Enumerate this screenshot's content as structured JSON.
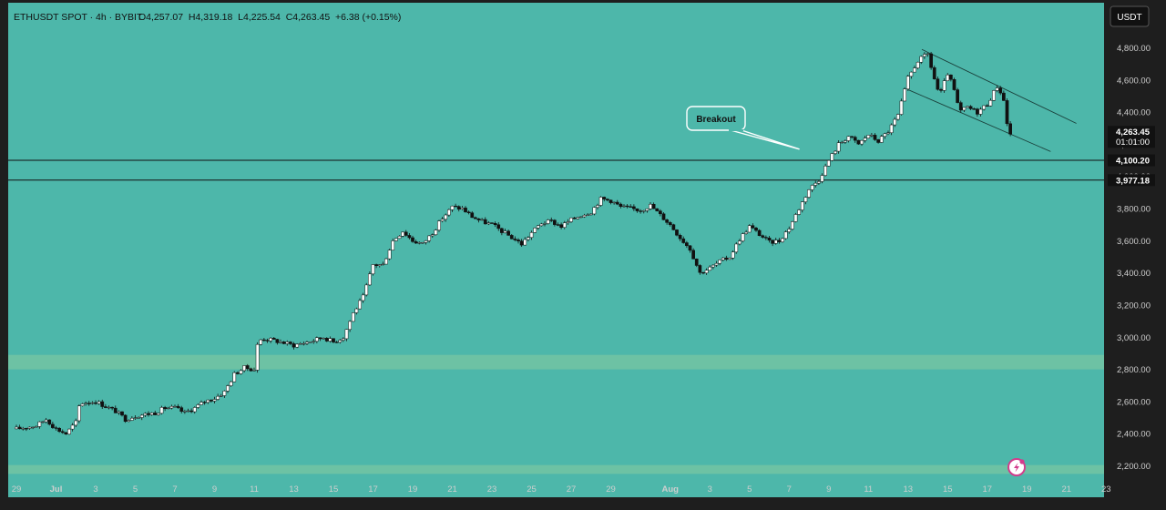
{
  "header": {
    "symbol": "ETHUSDT SPOT · 4h · BYBIT",
    "ohlc": "O4,257.07  H4,319.18  L4,225.54  C4,263.45  +6.38 (+0.15%)"
  },
  "currency_button": "USDT",
  "annotation": {
    "label": "Breakout"
  },
  "price_badge": {
    "price": "4,263.45",
    "countdown": "01:01:00"
  },
  "level_badges": [
    "4,100.20",
    "3,977.18"
  ],
  "colors": {
    "background": "#4DB7AA",
    "band": "#6DC2A4",
    "candle_up": "#FFFFFF",
    "candle_down": "#111111",
    "frame": "#1E1E1E"
  },
  "chart_data": {
    "type": "candlestick",
    "title": "",
    "xlabel": "",
    "ylabel": "",
    "ylim": [
      2150,
      4950
    ],
    "yaxis_ticks": [
      "4,800.00",
      "4,600.00",
      "4,400.00",
      "4,200.00",
      "4,000.00",
      "3,800.00",
      "3,600.00",
      "3,400.00",
      "3,200.00",
      "3,000.00",
      "2,800.00",
      "2,600.00",
      "2,400.00",
      "2,200.00"
    ],
    "yaxis_tick_values": [
      4800,
      4600,
      4400,
      4200,
      4000,
      3800,
      3600,
      3400,
      3200,
      3000,
      2800,
      2600,
      2400,
      2200
    ],
    "xaxis_ticks": [
      {
        "label": "29",
        "day": 0
      },
      {
        "label": "Jul",
        "day": 2
      },
      {
        "label": "3",
        "day": 4
      },
      {
        "label": "5",
        "day": 6
      },
      {
        "label": "7",
        "day": 8
      },
      {
        "label": "9",
        "day": 10
      },
      {
        "label": "11",
        "day": 12
      },
      {
        "label": "13",
        "day": 14
      },
      {
        "label": "15",
        "day": 16
      },
      {
        "label": "17",
        "day": 18
      },
      {
        "label": "19",
        "day": 20
      },
      {
        "label": "21",
        "day": 22
      },
      {
        "label": "23",
        "day": 24
      },
      {
        "label": "25",
        "day": 26
      },
      {
        "label": "27",
        "day": 28
      },
      {
        "label": "29",
        "day": 30
      },
      {
        "label": "Aug",
        "day": 33
      },
      {
        "label": "3",
        "day": 35
      },
      {
        "label": "5",
        "day": 37
      },
      {
        "label": "7",
        "day": 39
      },
      {
        "label": "9",
        "day": 41
      },
      {
        "label": "11",
        "day": 43
      },
      {
        "label": "13",
        "day": 45
      },
      {
        "label": "15",
        "day": 47
      },
      {
        "label": "17",
        "day": 49
      },
      {
        "label": "19",
        "day": 51
      },
      {
        "label": "21",
        "day": 53
      },
      {
        "label": "23",
        "day": 55
      }
    ],
    "horizontal_levels": [
      4100.2,
      3977.18
    ],
    "zones": [
      {
        "from": 2800,
        "to": 2890
      },
      {
        "from": 2150,
        "to": 2205
      }
    ],
    "trendlines": [
      {
        "from": {
          "day": 45.7,
          "price": 4790
        },
        "to": {
          "day": 53.5,
          "price": 4330
        }
      },
      {
        "from": {
          "day": 45.0,
          "price": 4540
        },
        "to": {
          "day": 52.2,
          "price": 4155
        }
      }
    ],
    "annotation_target": {
      "day": 39.5,
      "price": 4170
    },
    "candle_interval_hours": 4,
    "first_candle_day": 0,
    "close_anchors": [
      [
        0,
        2430
      ],
      [
        1,
        2450
      ],
      [
        1.5,
        2490
      ],
      [
        2,
        2430
      ],
      [
        2.5,
        2400
      ],
      [
        3,
        2470
      ],
      [
        3.2,
        2590
      ],
      [
        4,
        2600
      ],
      [
        4.5,
        2570
      ],
      [
        5,
        2540
      ],
      [
        5.5,
        2490
      ],
      [
        6,
        2510
      ],
      [
        7,
        2530
      ],
      [
        7.5,
        2560
      ],
      [
        8,
        2560
      ],
      [
        8.5,
        2530
      ],
      [
        9,
        2560
      ],
      [
        9.5,
        2600
      ],
      [
        10,
        2620
      ],
      [
        10.5,
        2660
      ],
      [
        11,
        2770
      ],
      [
        11.5,
        2810
      ],
      [
        12,
        2800
      ],
      [
        12.2,
        2980
      ],
      [
        12.5,
        2990
      ],
      [
        13,
        2980
      ],
      [
        14,
        2950
      ],
      [
        15,
        2980
      ],
      [
        15.5,
        3000
      ],
      [
        16,
        2970
      ],
      [
        16.5,
        3000
      ],
      [
        17,
        3150
      ],
      [
        17.5,
        3250
      ],
      [
        18,
        3450
      ],
      [
        18.5,
        3450
      ],
      [
        19,
        3600
      ],
      [
        19.5,
        3660
      ],
      [
        20,
        3600
      ],
      [
        20.5,
        3580
      ],
      [
        21,
        3650
      ],
      [
        21.5,
        3740
      ],
      [
        22,
        3810
      ],
      [
        22.5,
        3800
      ],
      [
        23,
        3750
      ],
      [
        23.5,
        3720
      ],
      [
        24,
        3700
      ],
      [
        24.5,
        3660
      ],
      [
        25,
        3620
      ],
      [
        25.5,
        3580
      ],
      [
        26,
        3650
      ],
      [
        26.5,
        3710
      ],
      [
        27,
        3720
      ],
      [
        27.5,
        3690
      ],
      [
        28,
        3730
      ],
      [
        28.5,
        3760
      ],
      [
        29,
        3780
      ],
      [
        29.5,
        3860
      ],
      [
        30,
        3850
      ],
      [
        30.5,
        3810
      ],
      [
        31,
        3800
      ],
      [
        31.5,
        3790
      ],
      [
        32,
        3820
      ],
      [
        32.5,
        3760
      ],
      [
        33,
        3700
      ],
      [
        33.5,
        3620
      ],
      [
        34,
        3550
      ],
      [
        34.5,
        3400
      ],
      [
        35,
        3430
      ],
      [
        35.5,
        3470
      ],
      [
        36,
        3500
      ],
      [
        36.5,
        3610
      ],
      [
        37,
        3690
      ],
      [
        37.5,
        3640
      ],
      [
        38,
        3590
      ],
      [
        38.5,
        3600
      ],
      [
        39,
        3680
      ],
      [
        39.5,
        3800
      ],
      [
        40,
        3920
      ],
      [
        40.5,
        3980
      ],
      [
        41,
        4100
      ],
      [
        41.5,
        4200
      ],
      [
        42,
        4250
      ],
      [
        42.5,
        4200
      ],
      [
        43,
        4260
      ],
      [
        43.5,
        4220
      ],
      [
        44,
        4280
      ],
      [
        44.5,
        4380
      ],
      [
        45,
        4610
      ],
      [
        45.5,
        4720
      ],
      [
        46,
        4760
      ],
      [
        46.3,
        4620
      ],
      [
        46.6,
        4500
      ],
      [
        47,
        4640
      ],
      [
        47.3,
        4550
      ],
      [
        47.6,
        4400
      ],
      [
        48,
        4430
      ],
      [
        48.5,
        4400
      ],
      [
        49,
        4450
      ],
      [
        49.5,
        4560
      ],
      [
        49.8,
        4500
      ],
      [
        50,
        4330
      ],
      [
        50.3,
        4263.45
      ]
    ]
  }
}
